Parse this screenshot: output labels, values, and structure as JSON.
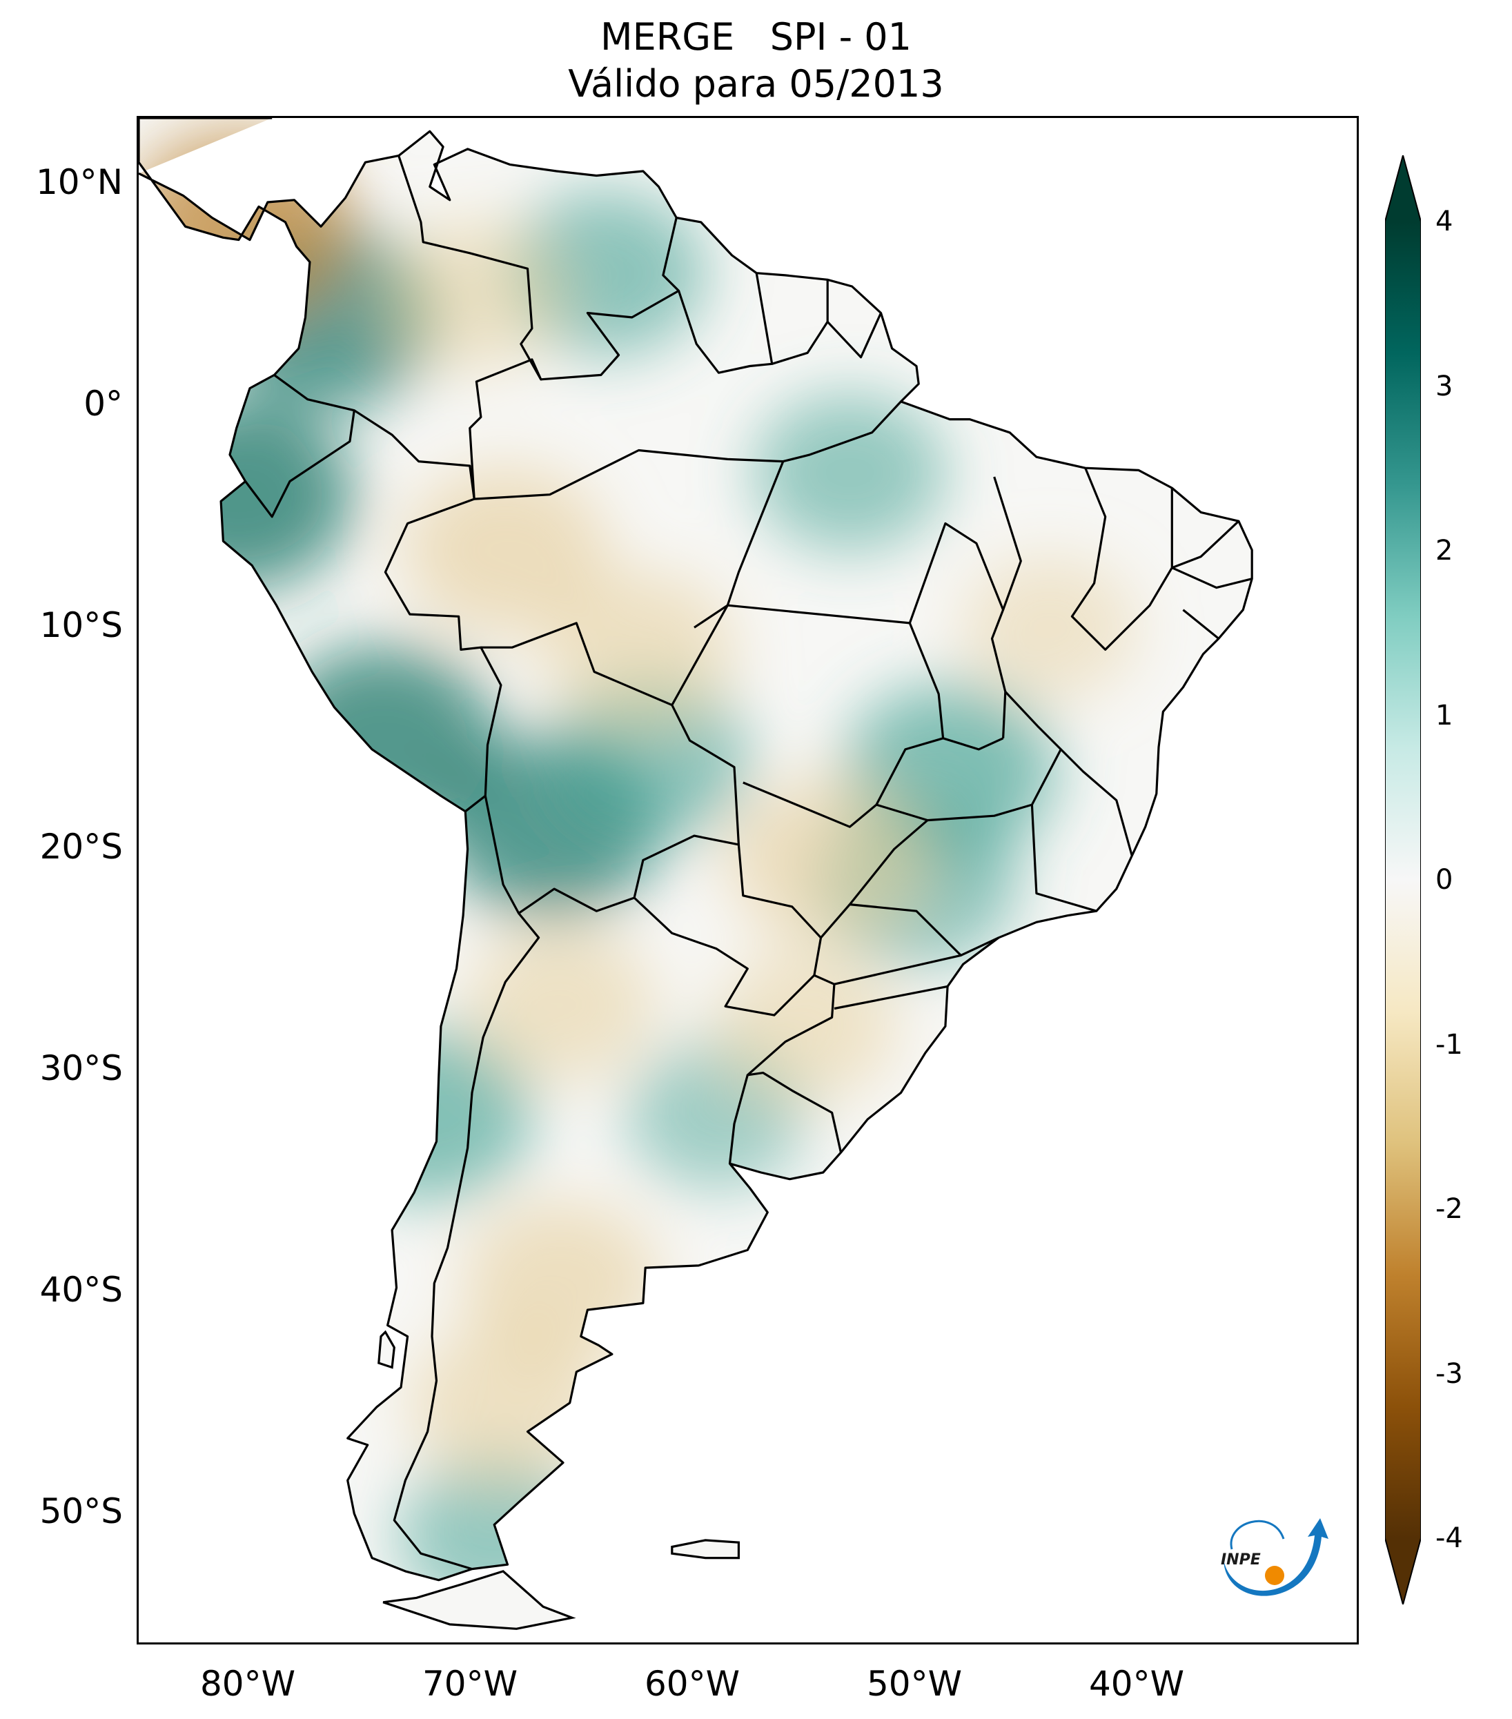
{
  "title": {
    "line1": "MERGE   SPI - 01",
    "line2": "Válido para 05/2013"
  },
  "map": {
    "projection": "PlateCarree",
    "lon_range": [
      -85,
      -30
    ],
    "lat_range": [
      -56,
      13
    ],
    "lat_ticks": [
      {
        "value": 10,
        "label": "10°N"
      },
      {
        "value": 0,
        "label": "0°"
      },
      {
        "value": -10,
        "label": "10°S"
      },
      {
        "value": -20,
        "label": "20°S"
      },
      {
        "value": -30,
        "label": "30°S"
      },
      {
        "value": -40,
        "label": "40°S"
      },
      {
        "value": -50,
        "label": "50°S"
      }
    ],
    "lon_ticks": [
      {
        "value": -80,
        "label": "80°W"
      },
      {
        "value": -70,
        "label": "70°W"
      },
      {
        "value": -60,
        "label": "60°W"
      },
      {
        "value": -50,
        "label": "50°W"
      },
      {
        "value": -40,
        "label": "40°W"
      }
    ],
    "field_colors": {
      "wet": "#4aa597",
      "wet_strong": "#1e7a6c",
      "neutral": "#f7f7f5",
      "dry": "#e6cf9c",
      "dry_strong": "#c08a3e"
    },
    "anomaly_regions": [
      {
        "kind": "wet",
        "lon": -76.5,
        "lat": 4.0,
        "strength": 0.85
      },
      {
        "kind": "wet",
        "lon": -80.5,
        "lat": -4.0,
        "strength": 0.95
      },
      {
        "kind": "wet",
        "lon": -74.0,
        "lat": -15.0,
        "strength": 0.9
      },
      {
        "kind": "wet",
        "lon": -66.5,
        "lat": -19.0,
        "strength": 0.85
      },
      {
        "kind": "wet",
        "lon": -62.0,
        "lat": -16.0,
        "strength": 0.6
      },
      {
        "kind": "wet",
        "lon": -48.5,
        "lat": -16.5,
        "strength": 0.75
      },
      {
        "kind": "wet",
        "lon": -50.0,
        "lat": -21.5,
        "strength": 0.6
      },
      {
        "kind": "wet",
        "lon": -64.0,
        "lat": 6.0,
        "strength": 0.6
      },
      {
        "kind": "wet",
        "lon": -53.0,
        "lat": -3.0,
        "strength": 0.5
      },
      {
        "kind": "wet",
        "lon": -72.0,
        "lat": -32.0,
        "strength": 0.7
      },
      {
        "kind": "wet",
        "lon": -69.0,
        "lat": -51.0,
        "strength": 0.5
      },
      {
        "kind": "wet",
        "lon": -59.0,
        "lat": -32.0,
        "strength": 0.35
      },
      {
        "kind": "dry",
        "lon": -66.0,
        "lat": -27.0,
        "strength": 0.45
      },
      {
        "kind": "dry",
        "lon": -66.0,
        "lat": -39.5,
        "strength": 0.55
      },
      {
        "kind": "dry",
        "lon": -68.5,
        "lat": -45.0,
        "strength": 0.5
      },
      {
        "kind": "dry",
        "lon": -68.5,
        "lat": -6.5,
        "strength": 0.65
      },
      {
        "kind": "dry",
        "lon": -62.5,
        "lat": -11.0,
        "strength": 0.5
      },
      {
        "kind": "dry",
        "lon": -54.0,
        "lat": -20.5,
        "strength": 0.6
      },
      {
        "kind": "dry",
        "lon": -80.5,
        "lat": 8.2,
        "strength": 0.9
      },
      {
        "kind": "dry",
        "lon": -70.0,
        "lat": 5.0,
        "strength": 0.4
      },
      {
        "kind": "dry",
        "lon": -44.0,
        "lat": -10.0,
        "strength": 0.3
      },
      {
        "kind": "dry",
        "lon": -55.0,
        "lat": -28.0,
        "strength": 0.4
      }
    ]
  },
  "colorbar": {
    "min": -4,
    "max": 4,
    "extend": "both",
    "ticks": [
      {
        "value": 4,
        "label": "4"
      },
      {
        "value": 3,
        "label": "3"
      },
      {
        "value": 2,
        "label": "2"
      },
      {
        "value": 1,
        "label": "1"
      },
      {
        "value": 0,
        "label": "0"
      },
      {
        "value": -1,
        "label": "-1"
      },
      {
        "value": -2,
        "label": "-2"
      },
      {
        "value": -3,
        "label": "-3"
      },
      {
        "value": -4,
        "label": "-4"
      }
    ],
    "colors": [
      "#543005",
      "#8c510a",
      "#bf812d",
      "#dfc27d",
      "#f6e8c3",
      "#f7f7f7",
      "#c7eae5",
      "#80cdc1",
      "#35978f",
      "#01665e",
      "#003c30"
    ]
  },
  "logo": {
    "text": "INPE",
    "colors": {
      "arrow": "#1477c0",
      "dot": "#f08a00"
    }
  }
}
